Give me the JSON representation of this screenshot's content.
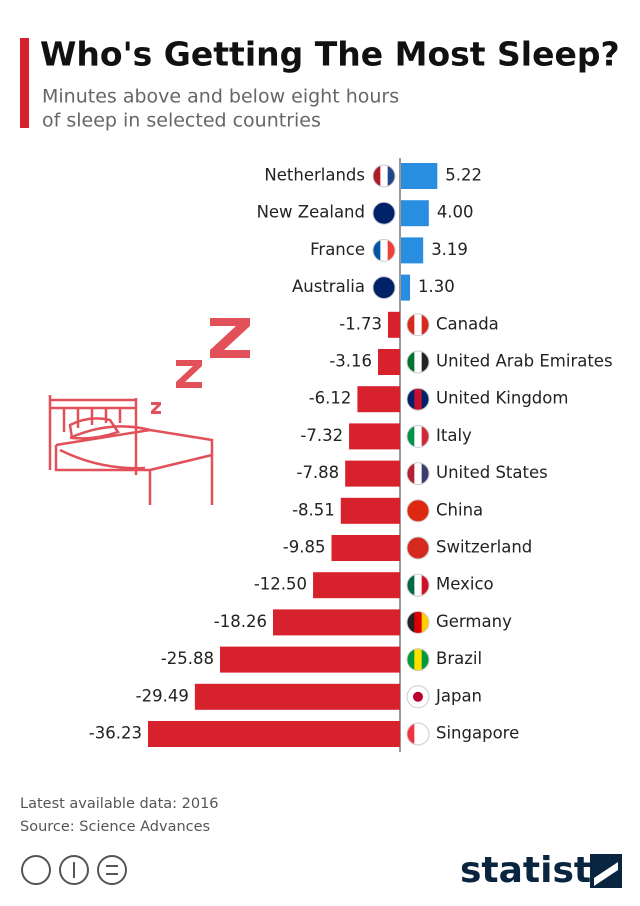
{
  "chart_data": {
    "type": "bar",
    "orientation": "horizontal",
    "title": "Who's Getting The Most Sleep?",
    "subtitle_lines": [
      "Minutes above and below eight hours",
      "of sleep in selected countries"
    ],
    "categories": [
      "Netherlands",
      "New Zealand",
      "France",
      "Australia",
      "Canada",
      "United Arab Emirates",
      "United Kingdom",
      "Italy",
      "United States",
      "China",
      "Switzerland",
      "Mexico",
      "Germany",
      "Brazil",
      "Japan",
      "Singapore"
    ],
    "values": [
      5.22,
      4.0,
      3.19,
      1.3,
      -1.73,
      -3.16,
      -6.12,
      -7.32,
      -7.88,
      -8.51,
      -9.85,
      -12.5,
      -18.26,
      -25.88,
      -29.49,
      -36.23
    ],
    "value_labels": [
      "5.22",
      "4.00",
      "3.19",
      "1.30",
      "-1.73",
      "-3.16",
      "-6.12",
      "-7.32",
      "-7.88",
      "-8.51",
      "-9.85",
      "-12.50",
      "-18.26",
      "-25.88",
      "-29.49",
      "-36.23"
    ],
    "positive_color": "#2a8ee0",
    "negative_color": "#d7212d",
    "notes": [
      "Latest available data: 2016",
      "Source: Science Advances"
    ],
    "brand": "statista"
  }
}
